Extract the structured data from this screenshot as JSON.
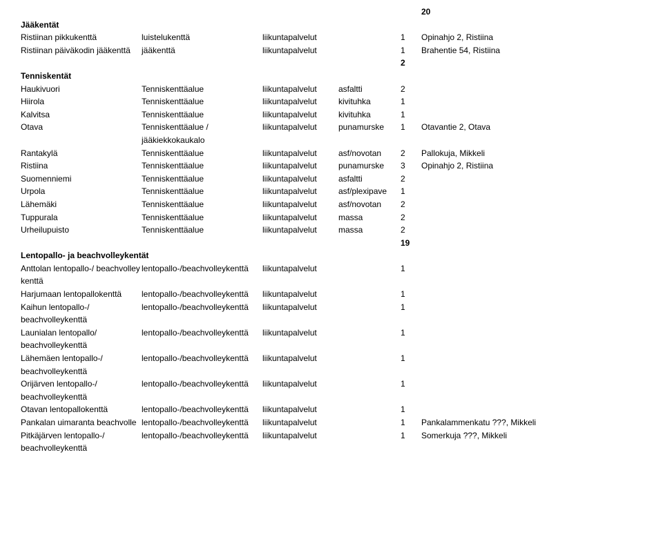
{
  "page_number": "20",
  "sections": {
    "jaakentat": {
      "heading": "Jääkentät",
      "rows": [
        {
          "c1": "Ristiinan pikkukenttä",
          "c2": "luistelukenttä",
          "c3": "liikuntapalvelut",
          "c4": "",
          "c5": "1",
          "c6": "Opinahjo 2, Ristiina"
        },
        {
          "c1": "Ristiinan päiväkodin jääkenttä",
          "c2": "jääkenttä",
          "c3": "liikuntapalvelut",
          "c4": "",
          "c5": "1",
          "c6": "Brahentie 54, Ristiina"
        }
      ],
      "total": "2"
    },
    "tenniskentat": {
      "heading": "Tenniskentät",
      "rows": [
        {
          "c1": "Haukivuori",
          "c2": "Tenniskenttäalue",
          "c3": "liikuntapalvelut",
          "c4": "asfaltti",
          "c5": "2",
          "c6": ""
        },
        {
          "c1": "Hiirola",
          "c2": "Tenniskenttäalue",
          "c3": "liikuntapalvelut",
          "c4": "kivituhka",
          "c5": "1",
          "c6": ""
        },
        {
          "c1": "Kalvitsa",
          "c2": "Tenniskenttäalue",
          "c3": "liikuntapalvelut",
          "c4": "kivituhka",
          "c5": "1",
          "c6": ""
        },
        {
          "c1": "Otava",
          "c2": "Tenniskenttäalue / jääkiekkokaukalo",
          "c3": "liikuntapalvelut",
          "c4": "punamurske",
          "c5": "1",
          "c6": "Otavantie 2, Otava"
        },
        {
          "c1": "Rantakylä",
          "c2": "Tenniskenttäalue",
          "c3": "liikuntapalvelut",
          "c4": "asf/novotan",
          "c5": "2",
          "c6": "Pallokuja, Mikkeli"
        },
        {
          "c1": "Ristiina",
          "c2": "Tenniskenttäalue",
          "c3": "liikuntapalvelut",
          "c4": "punamurske",
          "c5": "3",
          "c6": "Opinahjo 2, Ristiina"
        },
        {
          "c1": "Suomenniemi",
          "c2": "Tenniskenttäalue",
          "c3": "liikuntapalvelut",
          "c4": "asfaltti",
          "c5": "2",
          "c6": ""
        },
        {
          "c1": "Urpola",
          "c2": "Tenniskenttäalue",
          "c3": "liikuntapalvelut",
          "c4": "asf/plexipave",
          "c5": "1",
          "c6": ""
        },
        {
          "c1": "Lähemäki",
          "c2": "Tenniskenttäalue",
          "c3": "liikuntapalvelut",
          "c4": "asf/novotan",
          "c5": "2",
          "c6": ""
        },
        {
          "c1": "Tuppurala",
          "c2": "Tenniskenttäalue",
          "c3": "liikuntapalvelut",
          "c4": "massa",
          "c5": "2",
          "c6": ""
        },
        {
          "c1": "Urheilupuisto",
          "c2": "Tenniskenttäalue",
          "c3": "liikuntapalvelut",
          "c4": "massa",
          "c5": "2",
          "c6": ""
        }
      ],
      "total": "19"
    },
    "lentopallo": {
      "heading": "Lentopallo- ja beachvolleykentät",
      "rows": [
        {
          "c1": "Anttolan lentopallo-/ beachvolley kenttä",
          "c2": "lentopallo-/beachvolleykenttä",
          "c3": "liikuntapalvelut",
          "c4": "",
          "c5": "1",
          "c6": ""
        },
        {
          "c1": "Harjumaan lentopallokenttä",
          "c2": "lentopallo-/beachvolleykenttä",
          "c3": "liikuntapalvelut",
          "c4": "",
          "c5": "1",
          "c6": ""
        },
        {
          "c1": "Kaihun lentopallo-/ beachvolleykenttä",
          "c2": "lentopallo-/beachvolleykenttä",
          "c3": "liikuntapalvelut",
          "c4": "",
          "c5": "1",
          "c6": ""
        },
        {
          "c1": "Launialan lentopallo/ beachvolleykenttä",
          "c2": "lentopallo-/beachvolleykenttä",
          "c3": "liikuntapalvelut",
          "c4": "",
          "c5": "1",
          "c6": ""
        },
        {
          "c1": "Lähemäen lentopallo-/ beachvolleykenttä",
          "c2": "lentopallo-/beachvolleykenttä",
          "c3": "liikuntapalvelut",
          "c4": "",
          "c5": "1",
          "c6": ""
        },
        {
          "c1": "Orijärven lentopallo-/ beachvolleykenttä",
          "c2": "lentopallo-/beachvolleykenttä",
          "c3": "liikuntapalvelut",
          "c4": "",
          "c5": "1",
          "c6": ""
        },
        {
          "c1": "Otavan lentopallokenttä",
          "c2": "lentopallo-/beachvolleykenttä",
          "c3": "liikuntapalvelut",
          "c4": "",
          "c5": "1",
          "c6": ""
        },
        {
          "c1": "Pankalan uimaranta beachvolle",
          "c2": "lentopallo-/beachvolleykenttä",
          "c3": "liikuntapalvelut",
          "c4": "",
          "c5": "1",
          "c6": "Pankalammenkatu ???, Mikkeli"
        },
        {
          "c1": "Pitkäjärven lentopallo-/ beachvolleykenttä",
          "c2": "lentopallo-/beachvolleykenttä",
          "c3": "liikuntapalvelut",
          "c4": "",
          "c5": "1",
          "c6": "Somerkuja ???, Mikkeli"
        }
      ]
    }
  }
}
